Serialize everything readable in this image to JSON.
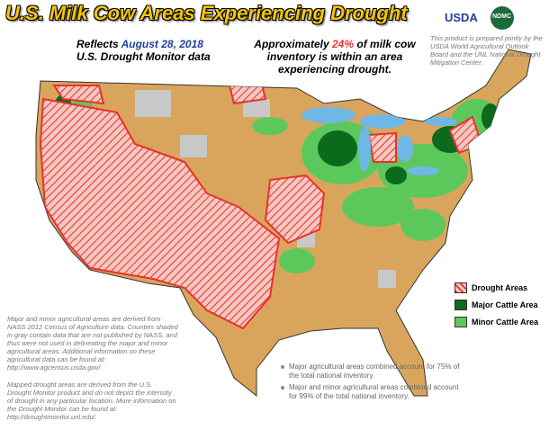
{
  "header": {
    "title": "U.S. Milk Cow Areas Experiencing Drought",
    "reflects": {
      "prefix": "Reflects",
      "date": "August 28, 2018",
      "source": "U.S. Drought Monitor data"
    },
    "summary": {
      "prefix": "Approximately",
      "percent": "24%",
      "suffix": "of milk cow inventory is within an area experiencing drought."
    }
  },
  "logos": [
    "USDA",
    "NDMC"
  ],
  "credit": "This product is prepared jointly by the USDA World Agricultural Outlook Board and the UNL National Drought Mitigation Center.",
  "legend": {
    "items": [
      {
        "label": "Drought Areas",
        "color": "#e8322b"
      },
      {
        "label": "Major Cattle Area",
        "color": "#0b6a1c"
      },
      {
        "label": "Minor Cattle Area",
        "color": "#5cc85c"
      }
    ]
  },
  "notes": [
    "Major and minor agricultural areas are derived from NASS 2012 Census of Agriculture data. Counties shaded in gray contain data that are not published by NASS, and thus were not used in delineating the major and minor agricultural areas. Additional information on these agricultural data can be found at: http://www.agcensus.usda.gov/.",
    "Mapped drought areas are derived from the U.S. Drought Monitor product and do not depict the intensity of drought in any particular location. More information on the Drought Monitor can be found at: http://droughtmonitor.unl.edu/."
  ],
  "stats": [
    "Major agricultural areas combined account for 75% of the total national inventory.",
    "Major and minor agricultural areas combined account for 99% of the total national inventory."
  ]
}
